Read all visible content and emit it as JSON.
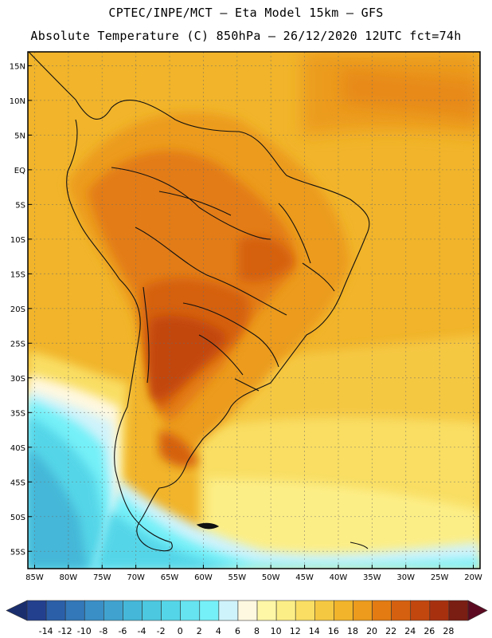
{
  "header": {
    "line1": "CPTEC/INPE/MCT –  Eta Model 15km – GFS",
    "line2": "Absolute Temperature (C) 850hPa – 26/12/2020 12UTC fct=74h"
  },
  "map": {
    "lon_range": [
      -86,
      -19
    ],
    "lat_range": [
      -57.5,
      17
    ],
    "lat_ticks": [
      {
        "v": 15,
        "label": "15N"
      },
      {
        "v": 10,
        "label": "10N"
      },
      {
        "v": 5,
        "label": "5N"
      },
      {
        "v": 0,
        "label": "EQ"
      },
      {
        "v": -5,
        "label": "5S"
      },
      {
        "v": -10,
        "label": "10S"
      },
      {
        "v": -15,
        "label": "15S"
      },
      {
        "v": -20,
        "label": "20S"
      },
      {
        "v": -25,
        "label": "25S"
      },
      {
        "v": -30,
        "label": "30S"
      },
      {
        "v": -35,
        "label": "35S"
      },
      {
        "v": -40,
        "label": "40S"
      },
      {
        "v": -45,
        "label": "45S"
      },
      {
        "v": -50,
        "label": "50S"
      },
      {
        "v": -55,
        "label": "55S"
      }
    ],
    "lon_ticks": [
      {
        "v": -85,
        "label": "85W"
      },
      {
        "v": -80,
        "label": "80W"
      },
      {
        "v": -75,
        "label": "75W"
      },
      {
        "v": -70,
        "label": "70W"
      },
      {
        "v": -65,
        "label": "65W"
      },
      {
        "v": -60,
        "label": "60W"
      },
      {
        "v": -55,
        "label": "55W"
      },
      {
        "v": -50,
        "label": "50W"
      },
      {
        "v": -45,
        "label": "45W"
      },
      {
        "v": -40,
        "label": "40W"
      },
      {
        "v": -35,
        "label": "35W"
      },
      {
        "v": -30,
        "label": "30W"
      },
      {
        "v": -25,
        "label": "25W"
      },
      {
        "v": -20,
        "label": "20W"
      }
    ]
  },
  "colorbar": {
    "labels": [
      "-14",
      "-12",
      "-10",
      "-8",
      "-6",
      "-4",
      "-2",
      "0",
      "2",
      "4",
      "6",
      "8",
      "10",
      "12",
      "14",
      "16",
      "18",
      "20",
      "22",
      "24",
      "26",
      "28"
    ],
    "colors": [
      "#23408f",
      "#2b5fa8",
      "#3378b8",
      "#3a8fc6",
      "#40a3cf",
      "#45b7d8",
      "#4cc8e0",
      "#55d6e8",
      "#66e4f0",
      "#75f0f8",
      "#cff3fb",
      "#fff8e0",
      "#fef7a6",
      "#fcee86",
      "#f9de63",
      "#f5c842",
      "#f1b42a",
      "#ec9b1c",
      "#e37b12",
      "#d5600f",
      "#c2470f",
      "#a7310f",
      "#7a1d12"
    ],
    "low_arrow_color": "#1a2e6e",
    "high_arrow_color": "#5c0a22"
  }
}
